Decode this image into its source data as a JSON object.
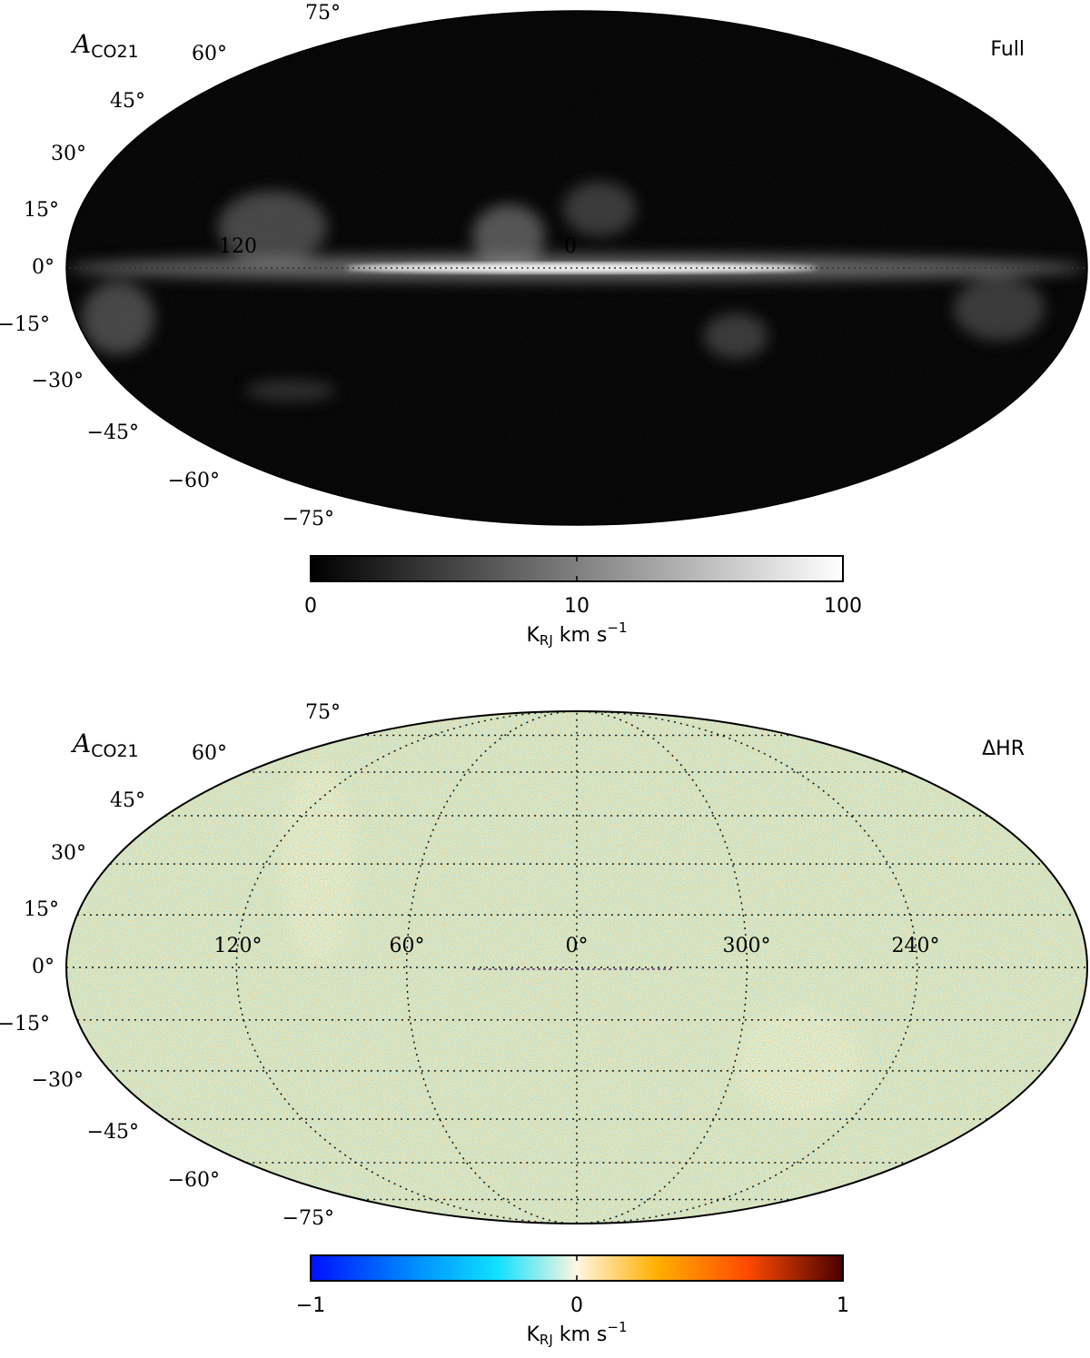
{
  "panels": [
    {
      "label": {
        "symbol": "A",
        "subscript": "CO21"
      },
      "title": "Full",
      "latitude_labels": [
        "75°",
        "60°",
        "45°",
        "30°",
        "15°",
        "0°",
        "−15°",
        "−30°",
        "−45°",
        "−60°",
        "−75°"
      ],
      "longitude_labels": [
        "120",
        "0"
      ],
      "colorbar": {
        "ticks": [
          0,
          10,
          100
        ],
        "unit": {
          "symbol": "K",
          "subscript": "RJ",
          "text": " km s",
          "superscript": "−1"
        }
      }
    },
    {
      "label": {
        "symbol": "A",
        "subscript": "CO21"
      },
      "title": "ΔHR",
      "latitude_labels": [
        "75°",
        "60°",
        "45°",
        "30°",
        "15°",
        "0°",
        "−15°",
        "−30°",
        "−45°",
        "−60°",
        "−75°"
      ],
      "longitude_labels": [
        "120°",
        "60°",
        "0°",
        "300°",
        "240°"
      ],
      "colorbar": {
        "ticks": [
          {
            "value": -1,
            "label": "−1"
          },
          0,
          1
        ],
        "unit": {
          "symbol": "K",
          "subscript": "RJ",
          "text": " km s",
          "superscript": "−1"
        }
      }
    }
  ]
}
